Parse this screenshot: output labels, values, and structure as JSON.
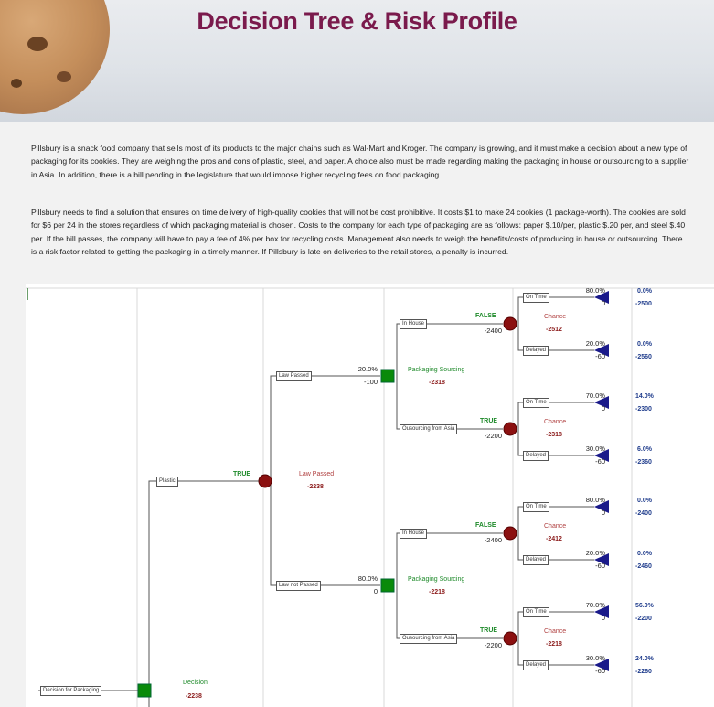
{
  "page": {
    "title": "Decision Tree & Risk Profile",
    "paragraph1": "Pillsbury is a snack food company that sells most of its products to the major chains such as Wal-Mart and Kroger. The company is growing, and it must make a decision about a new type of packaging for its cookies. They are weighing the pros and cons of plastic, steel, and paper. A choice also must be made regarding making the packaging in house or outsourcing to a supplier in Asia. In addition, there is a bill pending in the legislature that would impose higher recycling fees on food packaging.",
    "paragraph2": "Pillsbury needs to find a solution that ensures on time delivery of high-quality cookies that will not be cost prohibitive. It costs $1 to make 24 cookies (1 package-worth). The cookies are sold for $6 per 24 in the stores regardless of which packaging material is chosen. Costs to the company for each type of packaging are as follows: paper $.10/per, plastic $.20 per, and steel $.40 per. If the bill passes, the company will have to pay a fee of 4% per box for recycling costs. Management also needs to weigh the benefits/costs of producing in house or outsourcing. There is a risk factor related to getting the packaging in a timely manner. If Pillsbury is late on deliveries to the retail stores, a penalty is incurred."
  },
  "tree": {
    "root": {
      "box": "Decision for Packaging",
      "label": "Decision",
      "value": "-2238"
    },
    "plastic": {
      "box": "Plastic",
      "flag": "TRUE",
      "label": "Law Passed",
      "value": "-2238"
    },
    "law_passed": {
      "box": "Law Passed",
      "prob": "20.0%",
      "cost": "-100",
      "label": "Packaging Sourcing",
      "value": "-2318",
      "in_house": {
        "box": "In House",
        "flag": "FALSE",
        "cost": "-2400",
        "label": "Chance",
        "value": "-2512",
        "on_time": {
          "box": "On Time",
          "prob": "80.0%",
          "cost": "0",
          "end_prob": "0.0%",
          "end_val": "-2500"
        },
        "delayed": {
          "box": "Delayed",
          "prob": "20.0%",
          "cost": "-60",
          "end_prob": "0.0%",
          "end_val": "-2560"
        }
      },
      "outsource": {
        "box": "Ousourcing from Asia",
        "flag": "TRUE",
        "cost": "-2200",
        "label": "Chance",
        "value": "-2318",
        "on_time": {
          "box": "On Time",
          "prob": "70.0%",
          "cost": "0",
          "end_prob": "14.0%",
          "end_val": "-2300"
        },
        "delayed": {
          "box": "Delayed",
          "prob": "30.0%",
          "cost": "-60",
          "end_prob": "6.0%",
          "end_val": "-2360"
        }
      }
    },
    "law_not_passed": {
      "box": "Law not Passed",
      "prob": "80.0%",
      "cost": "0",
      "label": "Packaging Sourcing",
      "value": "-2218",
      "in_house": {
        "box": "In House",
        "flag": "FALSE",
        "cost": "-2400",
        "label": "Chance",
        "value": "-2412",
        "on_time": {
          "box": "On Time",
          "prob": "80.0%",
          "cost": "0",
          "end_prob": "0.0%",
          "end_val": "-2400"
        },
        "delayed": {
          "box": "Delayed",
          "prob": "20.0%",
          "cost": "-60",
          "end_prob": "0.0%",
          "end_val": "-2460"
        }
      },
      "outsource": {
        "box": "Ousourcing from Asia",
        "flag": "TRUE",
        "cost": "-2200",
        "label": "Chance",
        "value": "-2218",
        "on_time": {
          "box": "On Time",
          "prob": "70.0%",
          "cost": "0",
          "end_prob": "56.0%",
          "end_val": "-2200"
        },
        "delayed": {
          "box": "Delayed",
          "prob": "30.0%",
          "cost": "-60",
          "end_prob": "24.0%",
          "end_val": "-2260"
        }
      }
    }
  },
  "colors": {
    "title": "#7a1a4c",
    "decision_node": "#0a8a0a",
    "chance_node": "#8b1010",
    "terminal": "#1a1a8a",
    "flag": "#1e8a2a",
    "end_value": "#1f3c8c"
  }
}
